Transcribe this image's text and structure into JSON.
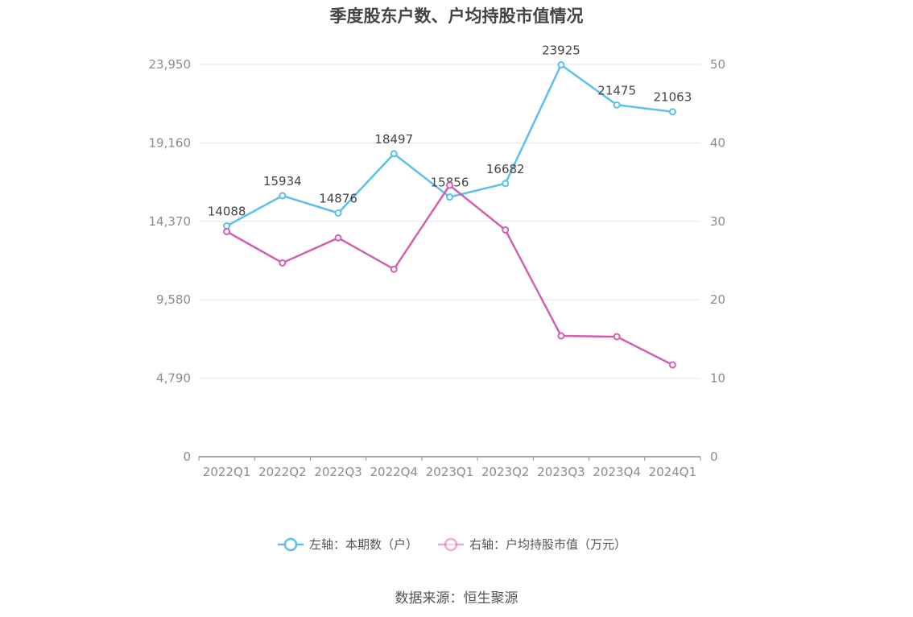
{
  "title": "季度股东户数、户均持股市值情况",
  "source": "数据来源：恒生聚源",
  "colors": {
    "left_series": "#5bc0eb",
    "right_series": "#d45fae",
    "grid": "#e3e6f0",
    "axis": "#8c8c9e"
  },
  "legend": [
    {
      "label": "左轴：本期数（户）"
    },
    {
      "label": "右轴：户均持股市值（万元）"
    }
  ],
  "chart_data": {
    "type": "line",
    "categories": [
      "2022Q1",
      "2022Q2",
      "2022Q3",
      "2022Q4",
      "2023Q1",
      "2023Q2",
      "2023Q3",
      "2023Q4",
      "2024Q1"
    ],
    "y_left": {
      "ticks": [
        "0",
        "4,790",
        "9,580",
        "14,370",
        "19,160",
        "23,950"
      ],
      "ylim": [
        0,
        23950
      ]
    },
    "y_right": {
      "ticks": [
        "0",
        "10",
        "20",
        "30",
        "40",
        "50"
      ],
      "ylim": [
        0,
        50
      ]
    },
    "grid": true,
    "legend_position": "bottom",
    "series": [
      {
        "name": "左轴：本期数（户）",
        "axis": "left",
        "show_labels": true,
        "values": [
          14088,
          15934,
          14876,
          18497,
          15856,
          16682,
          23925,
          21475,
          21063
        ]
      },
      {
        "name": "右轴：户均持股市值（万元）",
        "axis": "right",
        "show_labels": false,
        "values": [
          28.7,
          24.7,
          27.9,
          23.9,
          34.6,
          28.9,
          15.4,
          15.3,
          11.7
        ]
      }
    ]
  }
}
